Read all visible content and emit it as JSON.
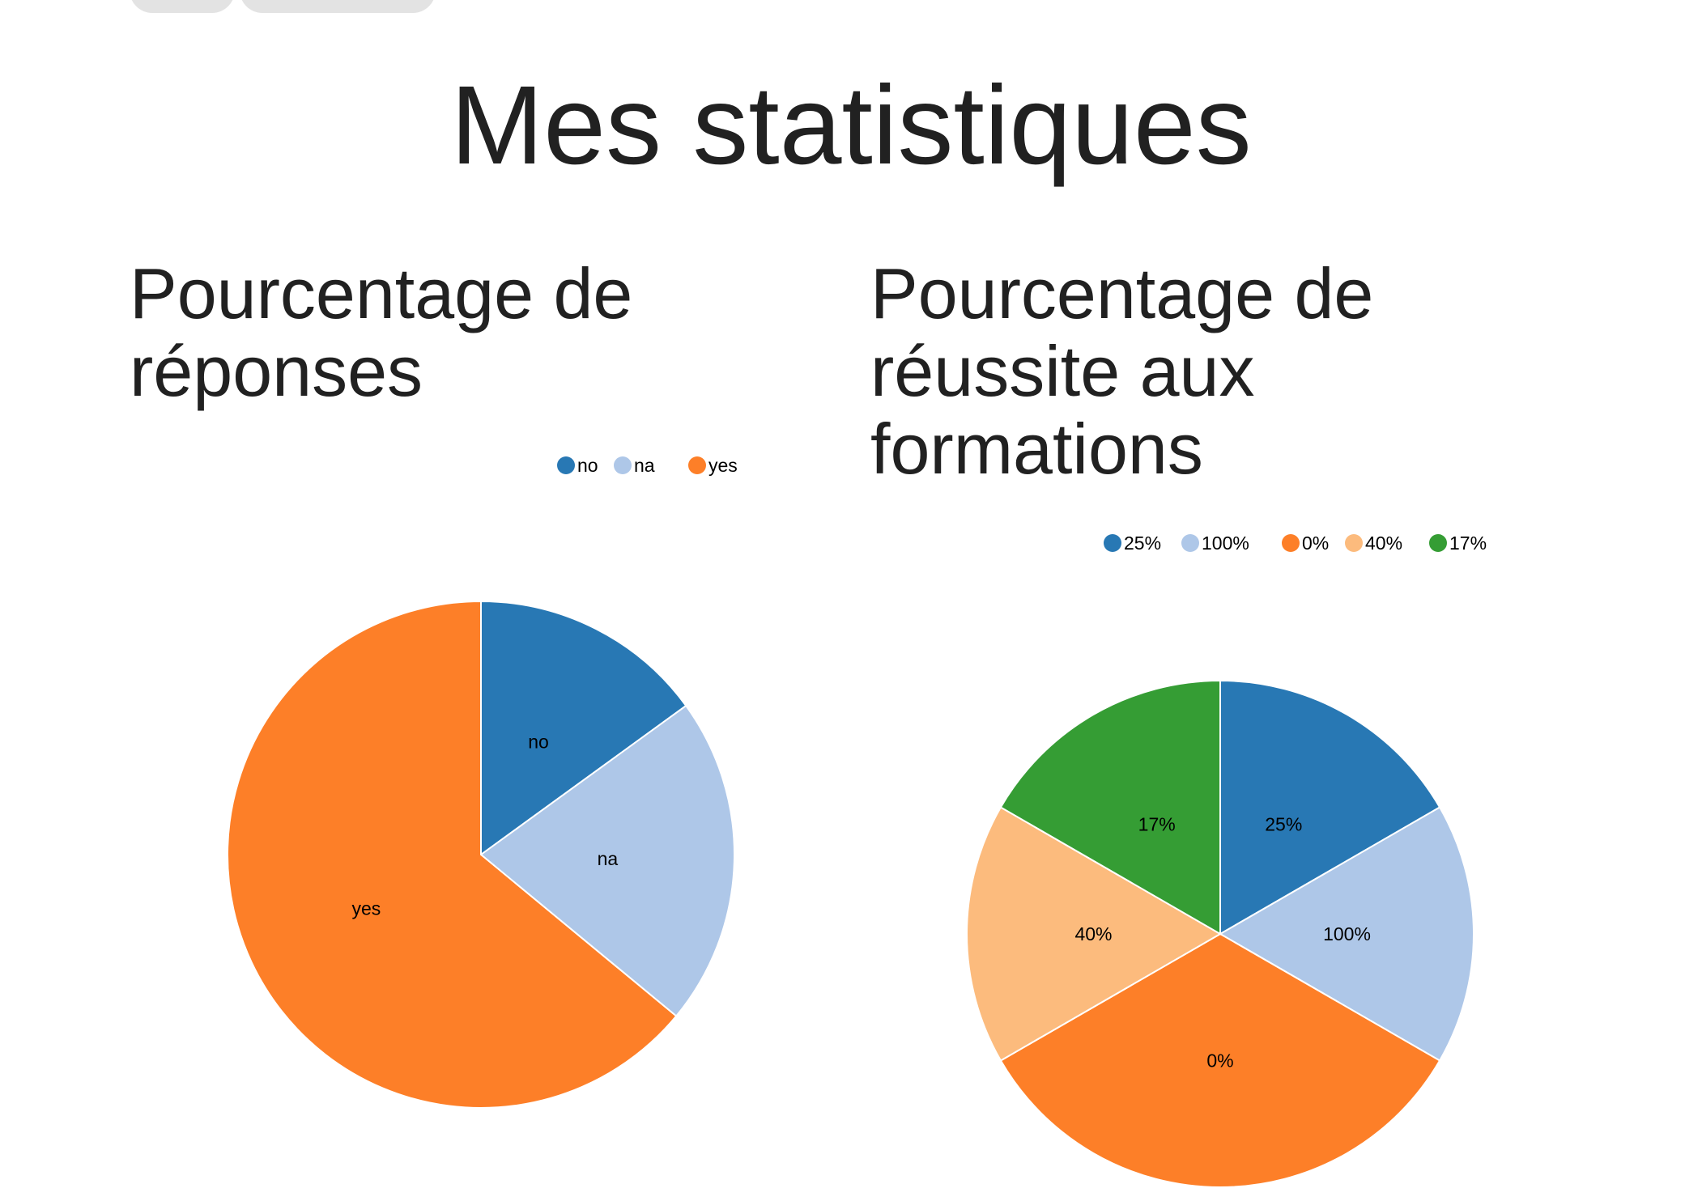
{
  "page": {
    "title": "Mes statistiques"
  },
  "colors": {
    "tab_background": "#e3e3e3",
    "slice_stroke": "#ffffff"
  },
  "chart_data": [
    {
      "type": "pie",
      "title": "Pourcentage de réponses",
      "legend_position": "top-right",
      "slices": [
        {
          "label": "no",
          "value": 15,
          "color": "#2878b4"
        },
        {
          "label": "na",
          "value": 21,
          "color": "#aec7e8"
        },
        {
          "label": "yes",
          "value": 64,
          "color": "#fd7f28"
        }
      ]
    },
    {
      "type": "pie",
      "title": "Pourcentage de réussite aux formations",
      "legend_position": "top-right",
      "slices": [
        {
          "label": "25%",
          "value": 1,
          "color": "#2878b4"
        },
        {
          "label": "100%",
          "value": 1,
          "color": "#aec7e8"
        },
        {
          "label": "0%",
          "value": 2,
          "color": "#fd7f28"
        },
        {
          "label": "40%",
          "value": 1,
          "color": "#fcbb7d"
        },
        {
          "label": "17%",
          "value": 1,
          "color": "#359d34"
        }
      ]
    }
  ]
}
